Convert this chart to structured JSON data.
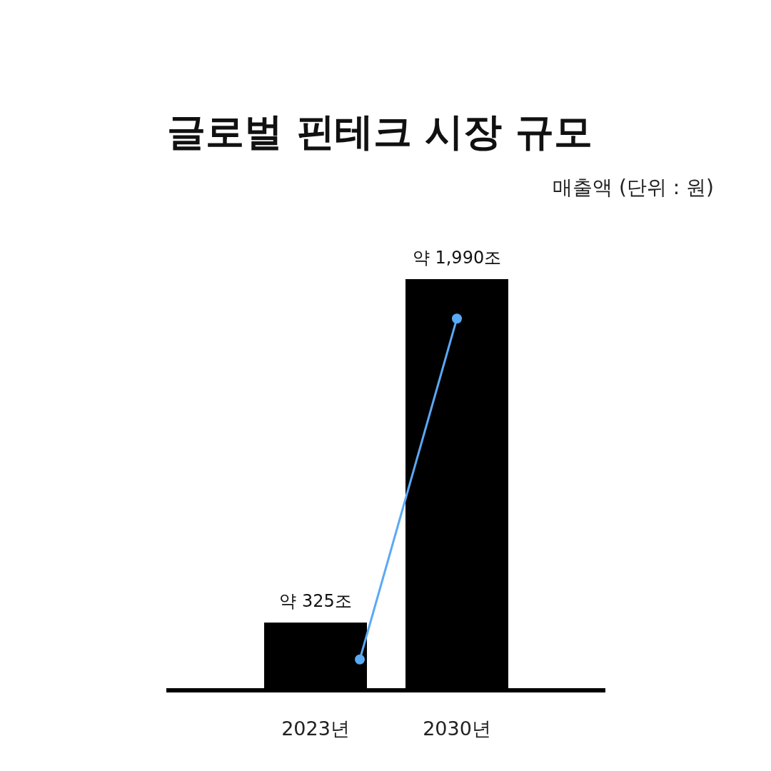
{
  "chart_data": {
    "type": "bar",
    "title": "글로벌 핀테크 시장 규모",
    "subtitle": "매출액 (단위 : 원)",
    "categories": [
      "2023년",
      "2030년"
    ],
    "series": [
      {
        "color": "#000000",
        "values": [
          325,
          1990
        ],
        "value_labels": [
          "약 325조",
          "약 1,990조"
        ]
      }
    ]
  }
}
